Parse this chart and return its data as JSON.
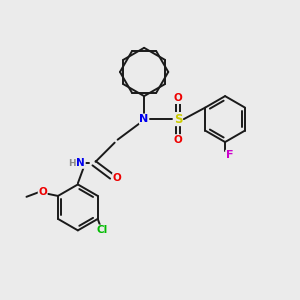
{
  "background_color": "#ebebeb",
  "bond_color": "#1a1a1a",
  "atom_colors": {
    "N": "#0000ee",
    "O": "#ee0000",
    "S": "#cccc00",
    "F": "#cc00cc",
    "Cl": "#00bb00",
    "H": "#888888",
    "C": "#1a1a1a"
  },
  "figsize": [
    3.0,
    3.0
  ],
  "dpi": 100
}
